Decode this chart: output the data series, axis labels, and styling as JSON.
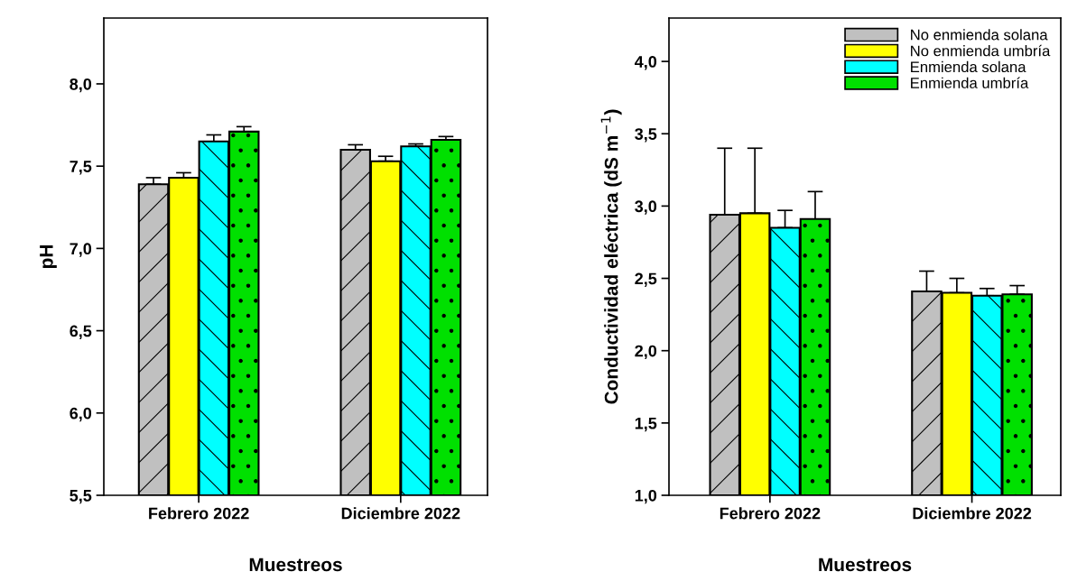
{
  "chart_data": [
    {
      "type": "bar",
      "categories": [
        "Febrero 2022",
        "Diciembre 2022"
      ],
      "xlabel": "Muestreos",
      "ylabel": "pH",
      "ylim": [
        5.5,
        8.4
      ],
      "yticks": [
        {
          "value": 5.5,
          "label": "5,5"
        },
        {
          "value": 6.0,
          "label": "6,0"
        },
        {
          "value": 6.5,
          "label": "6,5"
        },
        {
          "value": 7.0,
          "label": "7,0"
        },
        {
          "value": 7.5,
          "label": "7,5"
        },
        {
          "value": 8.0,
          "label": "8,0"
        }
      ],
      "grid": false,
      "legend": false,
      "series": [
        {
          "color": "#c0c0c0",
          "values": [
            7.39,
            7.6
          ],
          "errors": [
            [
              7.39,
              7.43
            ],
            [
              7.6,
              7.63
            ]
          ]
        },
        {
          "color": "#ffff00",
          "values": [
            7.43,
            7.53
          ],
          "errors": [
            [
              7.43,
              7.46
            ],
            [
              7.53,
              7.56
            ]
          ]
        },
        {
          "color": "#00ffff",
          "values": [
            7.65,
            7.62
          ],
          "errors": [
            [
              7.65,
              7.69
            ],
            [
              7.62,
              7.635
            ]
          ]
        },
        {
          "color": "#00e000",
          "values": [
            7.71,
            7.66
          ],
          "errors": [
            [
              7.71,
              7.74
            ],
            [
              7.66,
              7.68
            ]
          ]
        }
      ]
    },
    {
      "type": "bar",
      "categories": [
        "Febrero 2022",
        "Diciembre 2022"
      ],
      "xlabel": "Muestreos",
      "ylabel": "Conductividad eléctrica (dS m$^{−1}$)",
      "ylim": [
        1.0,
        4.3
      ],
      "yticks": [
        {
          "value": 1.0,
          "label": "1,0"
        },
        {
          "value": 1.5,
          "label": "1,5"
        },
        {
          "value": 2.0,
          "label": "2,0"
        },
        {
          "value": 2.5,
          "label": "2,5"
        },
        {
          "value": 3.0,
          "label": "3,0"
        },
        {
          "value": 3.5,
          "label": "3,5"
        },
        {
          "value": 4.0,
          "label": "4,0"
        }
      ],
      "grid": false,
      "legend": "top right",
      "series": [
        {
          "name": "No enmienda solana",
          "color": "#c0c0c0",
          "values": [
            2.94,
            2.41
          ],
          "errors": [
            [
              2.94,
              3.4
            ],
            [
              2.41,
              2.55
            ]
          ]
        },
        {
          "name": "No enmienda umbría",
          "color": "#ffff00",
          "values": [
            2.95,
            2.4
          ],
          "errors": [
            [
              2.95,
              3.4
            ],
            [
              2.4,
              2.5
            ]
          ]
        },
        {
          "name": "Enmienda solana",
          "color": "#00ffff",
          "values": [
            2.85,
            2.38
          ],
          "errors": [
            [
              2.85,
              2.97
            ],
            [
              2.38,
              2.43
            ]
          ]
        },
        {
          "name": "Enmienda umbría",
          "color": "#00e000",
          "values": [
            2.91,
            2.39
          ],
          "errors": [
            [
              2.91,
              3.1
            ],
            [
              2.39,
              2.45
            ]
          ]
        }
      ]
    }
  ]
}
